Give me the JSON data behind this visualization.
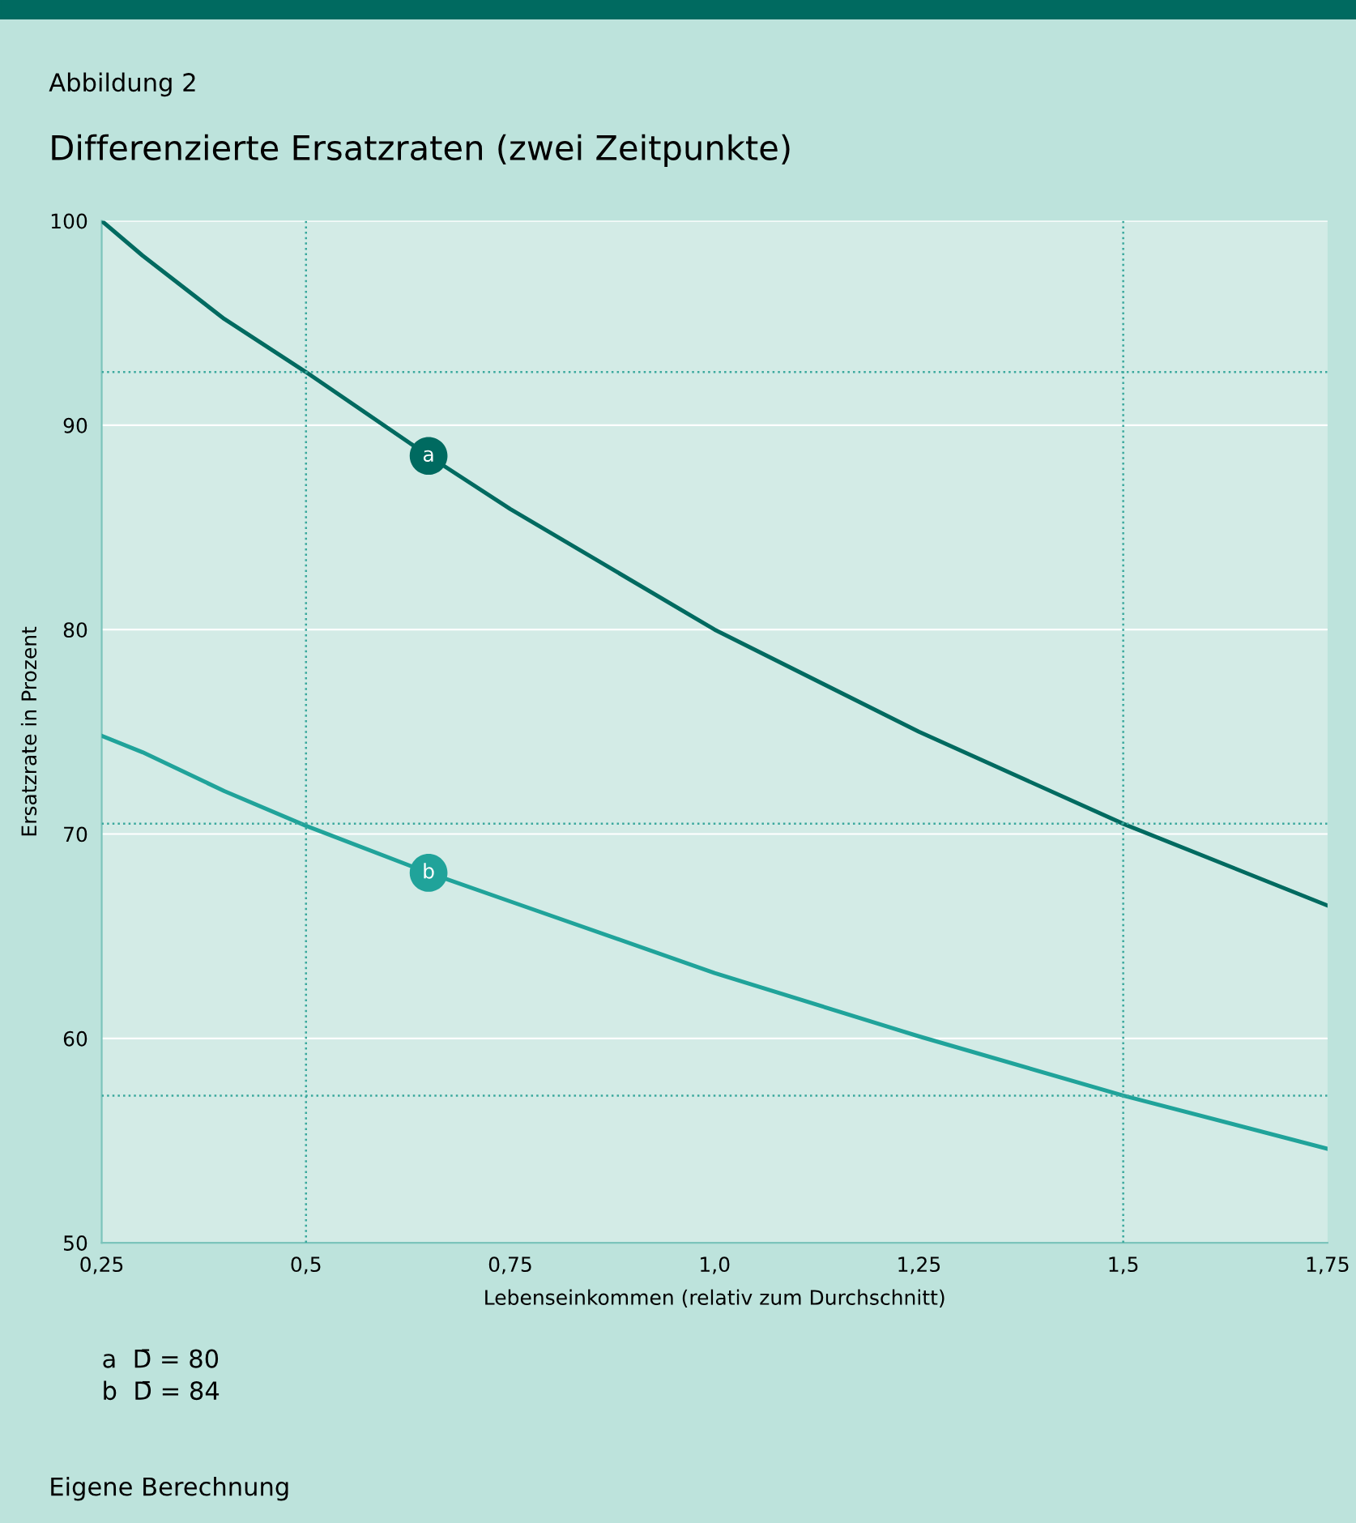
{
  "chart_data": {
    "type": "line",
    "subtitle": "Abbildung 2",
    "title": "Differenzierte Ersatzraten (zwei Zeitpunkte)",
    "xlabel": "Lebenseinkommen (relativ zum Durchschnitt)",
    "ylabel": "Ersatzrate in Prozent",
    "x": [
      0.25,
      0.3,
      0.4,
      0.5,
      0.65,
      0.75,
      1.0,
      1.25,
      1.5,
      1.75
    ],
    "series": [
      {
        "color": "#006a60",
        "values": [
          100,
          98.3,
          95.2,
          92.6,
          88.5,
          85.9,
          80,
          75.0,
          70.5,
          66.5
        ]
      },
      {
        "color": "#20a39a",
        "values": [
          74.8,
          74.0,
          72.1,
          70.4,
          68.1,
          66.7,
          63.2,
          60.1,
          57.2,
          54.6
        ]
      }
    ],
    "xlim": [
      0.25,
      1.75
    ],
    "ylim": [
      50,
      100
    ],
    "xticks": [
      {
        "value": 0.25,
        "label": "0,25"
      },
      {
        "value": 0.5,
        "label": "0,5"
      },
      {
        "value": 0.75,
        "label": "0,75"
      },
      {
        "value": 1.0,
        "label": "1,0"
      },
      {
        "value": 1.25,
        "label": "1,25"
      },
      {
        "value": 1.5,
        "label": "1,5"
      },
      {
        "value": 1.75,
        "label": "1,75"
      }
    ],
    "yticks": [
      50,
      60,
      70,
      80,
      90,
      100
    ],
    "grid": "y",
    "legend": false,
    "marker": "none",
    "line_style": "solid",
    "ref_lines": [
      {
        "axis": "x",
        "value": 0.5,
        "color": "#3aa89d",
        "line_style": "dotted"
      },
      {
        "axis": "x",
        "value": 1.5,
        "color": "#3aa89d",
        "line_style": "dotted"
      },
      {
        "axis": "y",
        "value": 92.6,
        "color": "#3aa89d",
        "line_style": "dotted"
      },
      {
        "axis": "y",
        "value": 70.5,
        "color": "#3aa89d",
        "line_style": "dotted"
      },
      {
        "axis": "y",
        "value": 57.2,
        "color": "#3aa89d",
        "line_style": "dotted"
      }
    ],
    "annotations": [
      {
        "text": "a",
        "x": 0.65,
        "y": 88.5
      },
      {
        "text": "b",
        "x": 0.65,
        "y": 68.1
      },
      "a  D̄ = 80",
      "b  D̄ = 84",
      "Eigene Berechnung"
    ]
  }
}
